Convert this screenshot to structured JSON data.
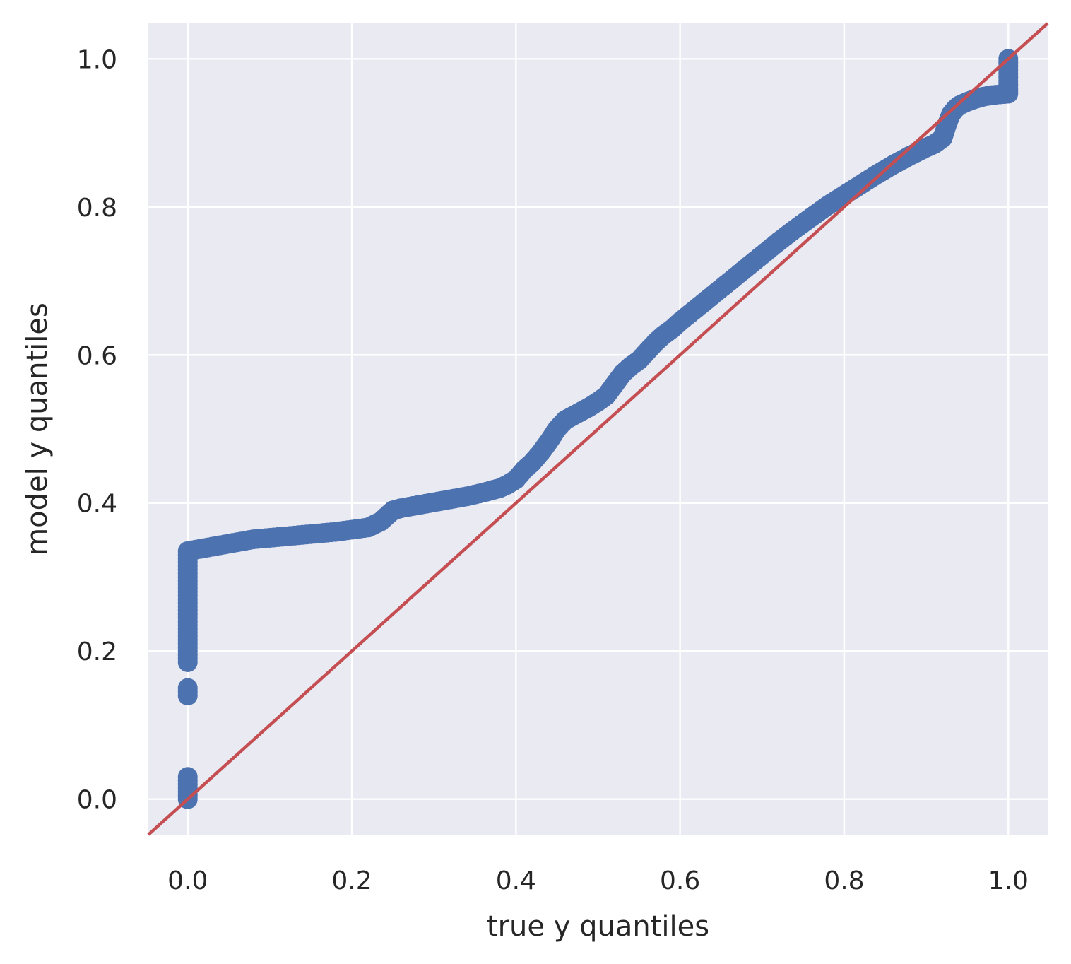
{
  "chart_data": {
    "type": "scatter",
    "title": "",
    "xlabel": "true y quantiles",
    "ylabel": "model y quantiles",
    "xlim": [
      -0.048,
      1.048
    ],
    "ylim": [
      -0.048,
      1.048
    ],
    "x_ticks": [
      0.0,
      0.2,
      0.4,
      0.6,
      0.8,
      1.0
    ],
    "y_ticks": [
      0.0,
      0.2,
      0.4,
      0.6,
      0.8,
      1.0
    ],
    "x_tick_labels": [
      "0.0",
      "0.2",
      "0.4",
      "0.6",
      "0.8",
      "1.0"
    ],
    "y_tick_labels": [
      "0.0",
      "0.2",
      "0.4",
      "0.6",
      "0.8",
      "1.0"
    ],
    "grid": true,
    "legend": null,
    "series": [
      {
        "kind": "scatter",
        "color": "#4c72b0",
        "points": [
          [
            0.0,
            0.0
          ],
          [
            0.0,
            0.005
          ],
          [
            0.0,
            0.01
          ],
          [
            0.0,
            0.015
          ],
          [
            0.0,
            0.02
          ],
          [
            0.0,
            0.025
          ],
          [
            0.0,
            0.03
          ],
          [
            0.0,
            0.14
          ],
          [
            0.0,
            0.15
          ],
          [
            0.0,
            0.185
          ],
          [
            0.0,
            0.195
          ],
          [
            0.0,
            0.21
          ],
          [
            0.0,
            0.23
          ],
          [
            0.0,
            0.24
          ],
          [
            0.0,
            0.25
          ],
          [
            0.0,
            0.26
          ],
          [
            0.0,
            0.275
          ],
          [
            0.0,
            0.285
          ],
          [
            0.0,
            0.295
          ],
          [
            0.0,
            0.305
          ],
          [
            0.0,
            0.315
          ],
          [
            0.0,
            0.325
          ],
          [
            0.0,
            0.335
          ],
          [
            0.01,
            0.337
          ],
          [
            0.02,
            0.339
          ],
          [
            0.03,
            0.341
          ],
          [
            0.04,
            0.343
          ],
          [
            0.05,
            0.345
          ],
          [
            0.06,
            0.347
          ],
          [
            0.07,
            0.349
          ],
          [
            0.08,
            0.351
          ],
          [
            0.09,
            0.352
          ],
          [
            0.1,
            0.353
          ],
          [
            0.12,
            0.355
          ],
          [
            0.14,
            0.357
          ],
          [
            0.16,
            0.359
          ],
          [
            0.18,
            0.361
          ],
          [
            0.2,
            0.364
          ],
          [
            0.22,
            0.367
          ],
          [
            0.235,
            0.375
          ],
          [
            0.245,
            0.385
          ],
          [
            0.25,
            0.39
          ],
          [
            0.26,
            0.393
          ],
          [
            0.28,
            0.397
          ],
          [
            0.3,
            0.401
          ],
          [
            0.32,
            0.405
          ],
          [
            0.34,
            0.409
          ],
          [
            0.36,
            0.414
          ],
          [
            0.38,
            0.42
          ],
          [
            0.39,
            0.425
          ],
          [
            0.4,
            0.432
          ],
          [
            0.41,
            0.445
          ],
          [
            0.42,
            0.455
          ],
          [
            0.43,
            0.468
          ],
          [
            0.44,
            0.483
          ],
          [
            0.45,
            0.5
          ],
          [
            0.46,
            0.512
          ],
          [
            0.47,
            0.518
          ],
          [
            0.48,
            0.524
          ],
          [
            0.49,
            0.53
          ],
          [
            0.5,
            0.537
          ],
          [
            0.51,
            0.545
          ],
          [
            0.52,
            0.56
          ],
          [
            0.53,
            0.575
          ],
          [
            0.54,
            0.585
          ],
          [
            0.55,
            0.593
          ],
          [
            0.56,
            0.605
          ],
          [
            0.57,
            0.617
          ],
          [
            0.58,
            0.627
          ],
          [
            0.59,
            0.635
          ],
          [
            0.6,
            0.645
          ],
          [
            0.62,
            0.663
          ],
          [
            0.64,
            0.681
          ],
          [
            0.66,
            0.699
          ],
          [
            0.68,
            0.717
          ],
          [
            0.7,
            0.735
          ],
          [
            0.72,
            0.753
          ],
          [
            0.74,
            0.77
          ],
          [
            0.76,
            0.786
          ],
          [
            0.78,
            0.802
          ],
          [
            0.8,
            0.816
          ],
          [
            0.82,
            0.83
          ],
          [
            0.84,
            0.844
          ],
          [
            0.86,
            0.857
          ],
          [
            0.88,
            0.869
          ],
          [
            0.9,
            0.88
          ],
          [
            0.91,
            0.885
          ],
          [
            0.92,
            0.893
          ],
          [
            0.925,
            0.91
          ],
          [
            0.93,
            0.925
          ],
          [
            0.935,
            0.932
          ],
          [
            0.94,
            0.937
          ],
          [
            0.95,
            0.942
          ],
          [
            0.96,
            0.946
          ],
          [
            0.97,
            0.949
          ],
          [
            0.98,
            0.951
          ],
          [
            0.99,
            0.952
          ],
          [
            1.0,
            0.953
          ],
          [
            1.0,
            0.96
          ],
          [
            1.0,
            0.97
          ],
          [
            1.0,
            0.98
          ],
          [
            1.0,
            0.99
          ],
          [
            1.0,
            1.0
          ]
        ]
      },
      {
        "kind": "line",
        "color": "#c44e52",
        "x": [
          -0.048,
          1.048
        ],
        "y": [
          -0.048,
          1.048
        ]
      }
    ]
  },
  "colors": {
    "plot_background": "#eaeaf2",
    "grid": "#ffffff",
    "text": "#262626"
  }
}
